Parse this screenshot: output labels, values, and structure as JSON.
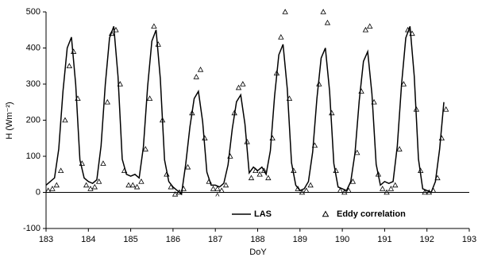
{
  "chart_data": {
    "type": "line-scatter",
    "xlabel": "DoY",
    "ylabel": "H (Wm⁻²)",
    "xlim": [
      183,
      193
    ],
    "ylim": [
      -100,
      500
    ],
    "xticks": [
      183,
      184,
      185,
      186,
      187,
      188,
      189,
      190,
      191,
      192,
      193
    ],
    "yticks": [
      -100,
      0,
      100,
      200,
      300,
      400,
      500
    ],
    "annotation": {
      "text": "^",
      "x": 187.05,
      "y": -12
    },
    "legend": "bottom",
    "series": [
      {
        "name": "LAS",
        "type": "line",
        "color": "#000000",
        "x": [
          183.0,
          183.1,
          183.2,
          183.3,
          183.4,
          183.5,
          183.6,
          183.7,
          183.8,
          183.9,
          184.0,
          184.1,
          184.2,
          184.3,
          184.4,
          184.5,
          184.6,
          184.7,
          184.8,
          184.9,
          185.0,
          185.1,
          185.2,
          185.3,
          185.4,
          185.5,
          185.6,
          185.7,
          185.8,
          185.9,
          186.0,
          186.1,
          186.2,
          186.3,
          186.4,
          186.5,
          186.6,
          186.7,
          186.8,
          186.9,
          187.0,
          187.1,
          187.2,
          187.3,
          187.4,
          187.5,
          187.6,
          187.7,
          187.8,
          187.9,
          188.0,
          188.1,
          188.2,
          188.3,
          188.4,
          188.5,
          188.6,
          188.7,
          188.8,
          188.9,
          189.0,
          189.1,
          189.2,
          189.3,
          189.4,
          189.5,
          189.6,
          189.7,
          189.8,
          189.9,
          190.0,
          190.1,
          190.2,
          190.3,
          190.4,
          190.5,
          190.6,
          190.7,
          190.8,
          190.9,
          191.0,
          191.1,
          191.2,
          191.3,
          191.4,
          191.5,
          191.6,
          191.7,
          191.8,
          191.9,
          192.0,
          192.1,
          192.2,
          192.3,
          192.4
        ],
        "values": [
          20,
          30,
          40,
          120,
          280,
          400,
          430,
          300,
          90,
          40,
          30,
          25,
          35,
          129,
          299,
          428,
          460,
          322,
          92,
          50,
          45,
          50,
          40,
          126,
          293,
          419,
          450,
          315,
          90,
          30,
          15,
          5,
          -5,
          78,
          182,
          260,
          280,
          196,
          56,
          20,
          20,
          15,
          25,
          76,
          176,
          251,
          270,
          189,
          54,
          70,
          60,
          70,
          50,
          115,
          267,
          381,
          410,
          287,
          82,
          20,
          5,
          10,
          30,
          112,
          260,
          372,
          400,
          280,
          80,
          15,
          10,
          5,
          30,
          109,
          254,
          363,
          390,
          273,
          78,
          20,
          30,
          25,
          30,
          129,
          299,
          428,
          460,
          322,
          92,
          10,
          5,
          0,
          30,
          120,
          250
        ]
      },
      {
        "name": "Eddy correlation",
        "type": "scatter",
        "color": "#000000",
        "x": [
          183.05,
          183.15,
          183.25,
          183.35,
          183.45,
          183.55,
          183.65,
          183.75,
          183.85,
          183.95,
          184.05,
          184.15,
          184.25,
          184.35,
          184.45,
          184.55,
          184.65,
          184.75,
          184.85,
          184.95,
          185.05,
          185.15,
          185.25,
          185.35,
          185.45,
          185.55,
          185.65,
          185.75,
          185.85,
          185.95,
          186.05,
          186.15,
          186.25,
          186.35,
          186.45,
          186.55,
          186.65,
          186.75,
          186.85,
          186.95,
          187.05,
          187.15,
          187.25,
          187.35,
          187.45,
          187.55,
          187.65,
          187.75,
          187.85,
          187.95,
          188.05,
          188.15,
          188.25,
          188.35,
          188.45,
          188.55,
          188.65,
          188.75,
          188.85,
          188.95,
          189.05,
          189.15,
          189.25,
          189.35,
          189.45,
          189.55,
          189.65,
          189.75,
          189.85,
          189.95,
          190.05,
          190.15,
          190.25,
          190.35,
          190.45,
          190.55,
          190.65,
          190.75,
          190.85,
          190.95,
          191.05,
          191.15,
          191.25,
          191.35,
          191.45,
          191.55,
          191.65,
          191.75,
          191.85,
          191.95,
          192.05,
          192.15,
          192.25,
          192.35,
          192.45
        ],
        "values": [
          5,
          10,
          20,
          60,
          200,
          350,
          390,
          260,
          80,
          20,
          10,
          15,
          30,
          80,
          250,
          440,
          450,
          300,
          60,
          20,
          20,
          15,
          30,
          120,
          260,
          460,
          410,
          200,
          50,
          15,
          -5,
          0,
          10,
          70,
          220,
          320,
          340,
          150,
          30,
          10,
          10,
          5,
          20,
          100,
          220,
          290,
          300,
          140,
          40,
          60,
          50,
          60,
          40,
          150,
          330,
          430,
          500,
          260,
          60,
          10,
          0,
          5,
          20,
          130,
          300,
          500,
          470,
          220,
          60,
          5,
          0,
          5,
          30,
          110,
          280,
          450,
          460,
          250,
          50,
          10,
          0,
          10,
          20,
          120,
          300,
          450,
          440,
          230,
          60,
          0,
          0,
          5,
          40,
          150,
          230
        ]
      }
    ]
  }
}
